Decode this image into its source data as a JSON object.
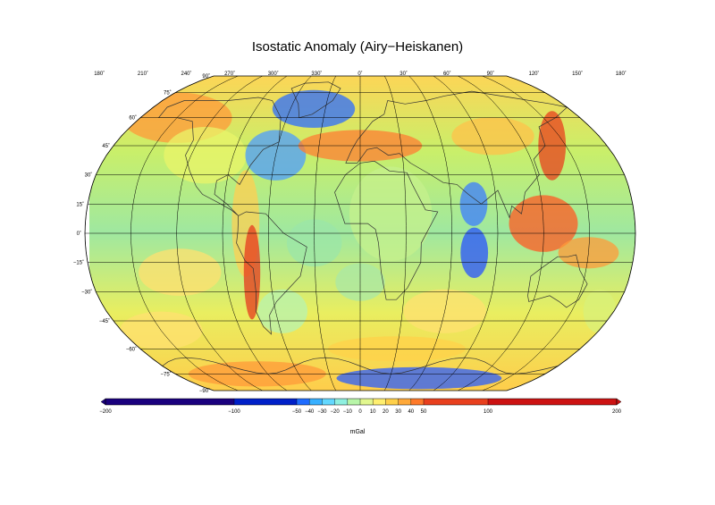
{
  "title": "Isostatic Anomaly (Airy−Heiskanen)",
  "map": {
    "projection": "Robinson",
    "lon_labels": [
      "180˚",
      "210˚",
      "240˚",
      "270˚",
      "300˚",
      "330˚",
      "0˚",
      "30˚",
      "60˚",
      "90˚",
      "120˚",
      "150˚",
      "180˚"
    ],
    "lat_labels": [
      "90˚",
      "75˚",
      "60˚",
      "45˚",
      "30˚",
      "15˚",
      "0˚",
      "−15˚",
      "−30˚",
      "−45˚",
      "−60˚",
      "−75˚",
      "−90˚"
    ]
  },
  "colorbar": {
    "unit": "mGal",
    "tick_labels": [
      "−200",
      "−100",
      "−50",
      "−40",
      "−30",
      "−20",
      "−10",
      "0",
      "10",
      "20",
      "30",
      "40",
      "50",
      "100",
      "200"
    ],
    "colors": [
      "#1a007d",
      "#0020c8",
      "#1f6cff",
      "#38b0ff",
      "#63d8ff",
      "#8ff0e0",
      "#b8f5a8",
      "#e2f78f",
      "#ffef70",
      "#ffd04a",
      "#ffa93a",
      "#ff7a2a",
      "#e8401e",
      "#cc1212",
      "#ffffff"
    ]
  }
}
